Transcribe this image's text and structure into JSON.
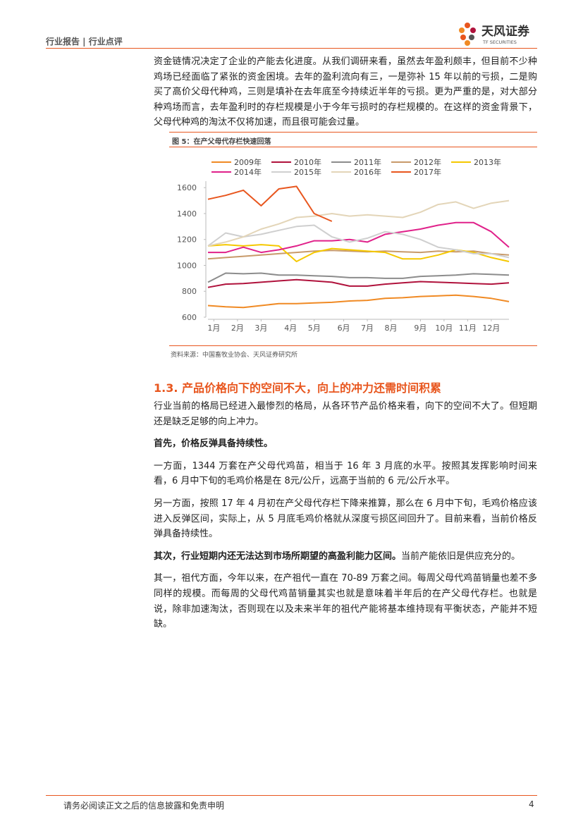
{
  "header": {
    "section": "行业报告 | 行业点评",
    "logo_cn": "天风证券",
    "logo_en": "TF SECURITIES"
  },
  "intro": "资金链情况决定了企业的产能去化进度。从我们调研来看，虽然去年盈利颇丰，但目前不少种鸡场已经面临了紧张的资金困境。去年的盈利流向有三，一是弥补 15 年以前的亏损，二是购买了高价父母代种鸡，三则是填补在去年底至今持续近半年的亏损。更为严重的是，对大部分种鸡场而言，去年盈利时的存栏规模是小于今年亏损时的存栏规模的。在这样的资金背景下，父母代种鸡的淘汰不仅将加速，而且很可能会过量。",
  "figure": {
    "caption": "图 5：在产父母代存栏快速回落",
    "source": "资料来源：中国畜牧业协会、天风证券研究所"
  },
  "chart_data": {
    "type": "line",
    "x": [
      1,
      4,
      7,
      10,
      13,
      16,
      19,
      22,
      25,
      28,
      31,
      34,
      37,
      40,
      43,
      46,
      49,
      52
    ],
    "xlim": [
      1,
      52
    ],
    "xticks": [
      {
        "value": 2,
        "label": "1月"
      },
      {
        "value": 6,
        "label": "2月"
      },
      {
        "value": 10,
        "label": "3月"
      },
      {
        "value": 15,
        "label": "4月"
      },
      {
        "value": 19,
        "label": "5月"
      },
      {
        "value": 24,
        "label": "6月"
      },
      {
        "value": 28,
        "label": "7月"
      },
      {
        "value": 32,
        "label": "8月"
      },
      {
        "value": 37,
        "label": "9月"
      },
      {
        "value": 41,
        "label": "10月"
      },
      {
        "value": 45,
        "label": "11月"
      },
      {
        "value": 49,
        "label": "12月"
      }
    ],
    "ylim": [
      600,
      1650
    ],
    "yticks": [
      600,
      800,
      1000,
      1200,
      1400,
      1600
    ],
    "grid": false,
    "series": [
      {
        "name": "2009年",
        "color": "#f08a24",
        "values": [
          690,
          680,
          675,
          690,
          705,
          705,
          710,
          715,
          725,
          730,
          745,
          750,
          760,
          765,
          770,
          760,
          745,
          720
        ]
      },
      {
        "name": "2010年",
        "color": "#b0123c",
        "values": [
          830,
          855,
          860,
          870,
          880,
          890,
          880,
          870,
          840,
          840,
          855,
          865,
          875,
          870,
          865,
          860,
          855,
          865
        ]
      },
      {
        "name": "2011年",
        "color": "#8c8c8c",
        "values": [
          870,
          940,
          935,
          940,
          925,
          925,
          920,
          915,
          905,
          905,
          900,
          900,
          915,
          920,
          925,
          935,
          930,
          925
        ]
      },
      {
        "name": "2012年",
        "color": "#c89a6a",
        "values": [
          1050,
          1060,
          1070,
          1080,
          1090,
          1100,
          1110,
          1115,
          1110,
          1105,
          1110,
          1105,
          1100,
          1110,
          1105,
          1110,
          1090,
          1080
        ]
      },
      {
        "name": "2013年",
        "color": "#f5c800",
        "values": [
          1150,
          1160,
          1150,
          1160,
          1150,
          1030,
          1100,
          1130,
          1120,
          1110,
          1100,
          1050,
          1050,
          1080,
          1120,
          1100,
          1060,
          1030
        ]
      },
      {
        "name": "2014年",
        "color": "#e0218a",
        "values": [
          1100,
          1100,
          1140,
          1100,
          1120,
          1150,
          1190,
          1190,
          1200,
          1180,
          1240,
          1260,
          1280,
          1310,
          1330,
          1330,
          1260,
          1140
        ]
      },
      {
        "name": "2015年",
        "color": "#cfcfcf",
        "values": [
          1150,
          1250,
          1220,
          1240,
          1270,
          1300,
          1310,
          1220,
          1180,
          1210,
          1260,
          1240,
          1200,
          1140,
          1120,
          1090,
          1090,
          1060
        ]
      },
      {
        "name": "2016年",
        "color": "#e3d5b8",
        "values": [
          1150,
          1180,
          1220,
          1280,
          1320,
          1370,
          1380,
          1400,
          1380,
          1390,
          1380,
          1370,
          1410,
          1470,
          1490,
          1440,
          1480,
          1500
        ]
      },
      {
        "name": "2017年",
        "color": "#e8561e",
        "values": [
          1510,
          1540,
          1580,
          1460,
          1590,
          1610,
          1400,
          1340,
          null,
          null,
          null,
          null,
          null,
          null,
          null,
          null,
          null,
          null
        ]
      }
    ]
  },
  "section": {
    "heading": "1.3. 产品价格向下的空间不大，向上的冲力还需时间积累",
    "paragraphs": [
      {
        "text": "行业当前的格局已经进入最惨烈的格局，从各环节产品价格来看，向下的空间不大了。但短期还是缺乏足够的向上冲力。"
      },
      {
        "bold": "首先，价格反弹具备持续性。"
      },
      {
        "text": "一方面，1344 万套在产父母代鸡苗，相当于 16 年 3 月底的水平。按照其发挥影响时间来看，6 月中下旬的毛鸡价格是在 8元/公斤，远高于当前的 6 元/公斤水平。"
      },
      {
        "text": "另一方面，按照 17 年 4 月初在产父母代存栏下降来推算，那么在 6 月中下旬，毛鸡价格应该进入反弹区间，实际上，从 5 月底毛鸡价格就从深度亏损区间回升了。目前来看，当前价格反弹具备持续性。"
      },
      {
        "bold": "其次，行业短期内还无法达到市场所期望的高盈利能力区间。",
        "text": "当前产能依旧是供应充分的。"
      },
      {
        "text": "其一，祖代方面，今年以来，在产祖代一直在 70-89 万套之间。每周父母代鸡苗销量也差不多同样的规模。而每周的父母代鸡苗销量其实也就是意味着半年后的在产父母代存栏。也就是说，除非加速淘汰，否则现在以及未来半年的祖代产能将基本维持现有平衡状态，产能并不短缺。"
      }
    ]
  },
  "footer": {
    "disclaimer": "请务必阅读正文之后的信息披露和免责申明",
    "page": 4
  }
}
